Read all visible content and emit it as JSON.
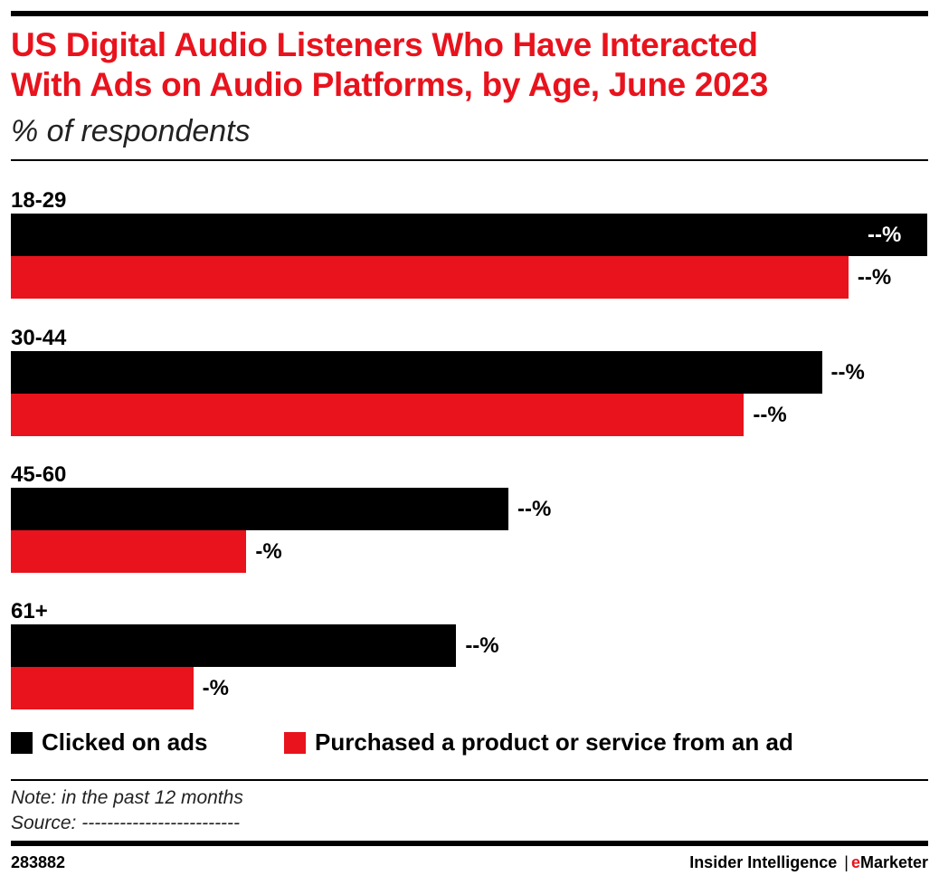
{
  "title_lines": [
    "US Digital Audio Listeners Who Have Interacted",
    "With Ads on Audio Platforms, by Age, June 2023"
  ],
  "subtitle": "% of respondents",
  "chart_data": {
    "type": "bar",
    "orientation": "horizontal",
    "categories": [
      "18-29",
      "30-44",
      "45-60",
      "61+"
    ],
    "series": [
      {
        "name": "Clicked on ads",
        "color": "#000000",
        "values": [
          100,
          88.5,
          54.3,
          48.6
        ],
        "labels": [
          "--%",
          "--%",
          "--%",
          "--%"
        ]
      },
      {
        "name": "Purchased a product or service from an ad",
        "color": "#e8131d",
        "values": [
          91.4,
          80.0,
          25.7,
          19.9
        ],
        "labels": [
          "--%",
          "--%",
          "-%",
          "-%"
        ]
      }
    ],
    "legend_position": "bottom-left",
    "grid": false,
    "axes_shown": false
  },
  "note": "Note: in the past 12 months",
  "source": "Source: -------------------------",
  "footer": {
    "id": "283882",
    "brand_left": "Insider Intelligence",
    "separator": "|",
    "brand_e": "e",
    "brand_right": "Marketer"
  },
  "colors": {
    "accent": "#e8131d",
    "black": "#000000"
  }
}
